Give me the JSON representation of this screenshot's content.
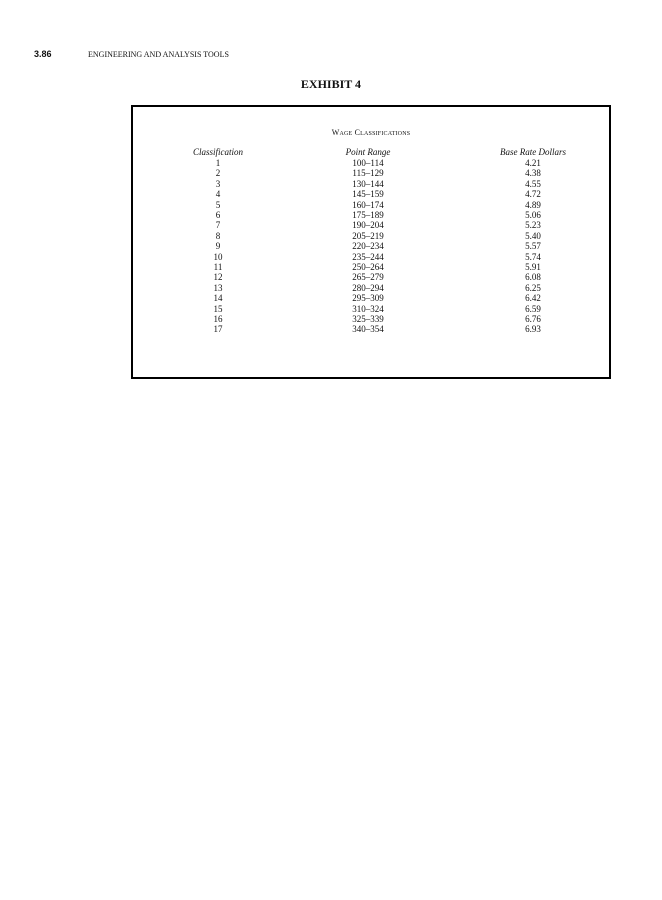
{
  "page_header": {
    "page_number": "3.86",
    "running_title": "ENGINEERING AND ANALYSIS TOOLS"
  },
  "exhibit_title": "EXHIBIT 4",
  "table": {
    "caption": "Wage Classifications",
    "columns": [
      "Classification",
      "Point Range",
      "Base Rate Dollars"
    ],
    "rows": [
      [
        "1",
        "100–114",
        "4.21"
      ],
      [
        "2",
        "115–129",
        "4.38"
      ],
      [
        "3",
        "130–144",
        "4.55"
      ],
      [
        "4",
        "145–159",
        "4.72"
      ],
      [
        "5",
        "160–174",
        "4.89"
      ],
      [
        "6",
        "175–189",
        "5.06"
      ],
      [
        "7",
        "190–204",
        "5.23"
      ],
      [
        "8",
        "205–219",
        "5.40"
      ],
      [
        "9",
        "220–234",
        "5.57"
      ],
      [
        "10",
        "235–244",
        "5.74"
      ],
      [
        "11",
        "250–264",
        "5.91"
      ],
      [
        "12",
        "265–279",
        "6.08"
      ],
      [
        "13",
        "280–294",
        "6.25"
      ],
      [
        "14",
        "295–309",
        "6.42"
      ],
      [
        "15",
        "310–324",
        "6.59"
      ],
      [
        "16",
        "325–339",
        "6.76"
      ],
      [
        "17",
        "340–354",
        "6.93"
      ]
    ]
  }
}
